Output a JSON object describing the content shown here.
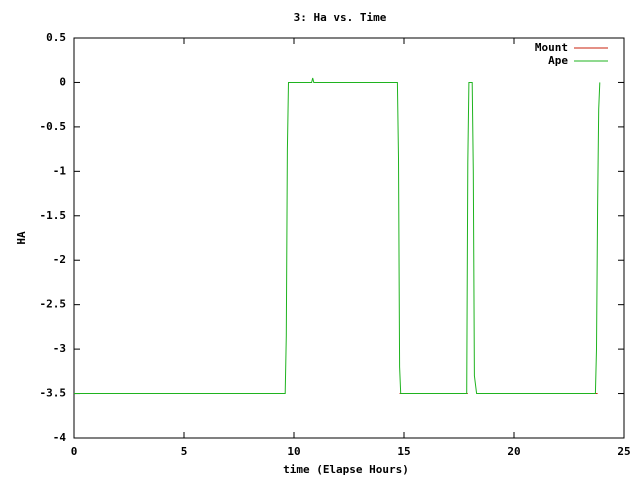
{
  "chart_data": {
    "type": "line",
    "title": "3: Ha vs. Time",
    "x_label": "time (Elapse Hours)",
    "y_label": "HA",
    "xlim": [
      0,
      25
    ],
    "xticks": [
      0,
      5,
      10,
      15,
      20,
      25
    ],
    "ylim": [
      -4,
      0.5
    ],
    "yticks": [
      0.5,
      0,
      -0.5,
      -1,
      -1.5,
      -2,
      -2.5,
      -3,
      -3.5,
      -4
    ],
    "grid": false,
    "legend": "top-right",
    "series": [
      {
        "name": "Mount",
        "color": "#c8200e",
        "x": [
          0,
          9.6,
          9.7,
          14.8,
          17.9,
          18.0,
          18.3,
          23.8
        ],
        "values": [
          -3.5,
          -3.5,
          null,
          -3.5,
          -3.5,
          null,
          -3.5,
          -3.5
        ]
      },
      {
        "name": "Ape",
        "color": "#1fb31f",
        "x": [
          0,
          9.6,
          9.65,
          9.7,
          9.75,
          10.8,
          10.85,
          10.9,
          14.7,
          14.75,
          14.8,
          14.85,
          17.85,
          17.9,
          17.95,
          18.1,
          18.15,
          18.2,
          18.3,
          23.7,
          23.75,
          23.8,
          23.85,
          23.9
        ],
        "values": [
          -3.5,
          -3.5,
          -2.85,
          -0.75,
          0,
          0,
          0.05,
          0,
          0,
          -0.85,
          -3.2,
          -3.5,
          -3.5,
          -0.9,
          0,
          0,
          -1.0,
          -3.3,
          -3.5,
          -3.5,
          -3.0,
          -1.4,
          -0.3,
          0
        ]
      }
    ]
  }
}
